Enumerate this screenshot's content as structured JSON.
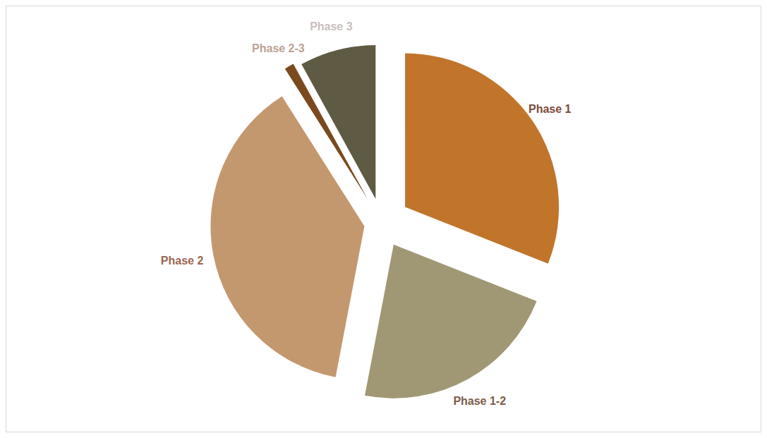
{
  "chart_data": {
    "type": "pie",
    "categories": [
      "Phase 1",
      "Phase 1-2",
      "Phase 2",
      "Phase 2-3",
      "Phase 3"
    ],
    "values": [
      31,
      22,
      38,
      1,
      8
    ],
    "colors": [
      "#c0752b",
      "#a09875",
      "#c4986e",
      "#7a4a1e",
      "#5e5a44"
    ]
  }
}
